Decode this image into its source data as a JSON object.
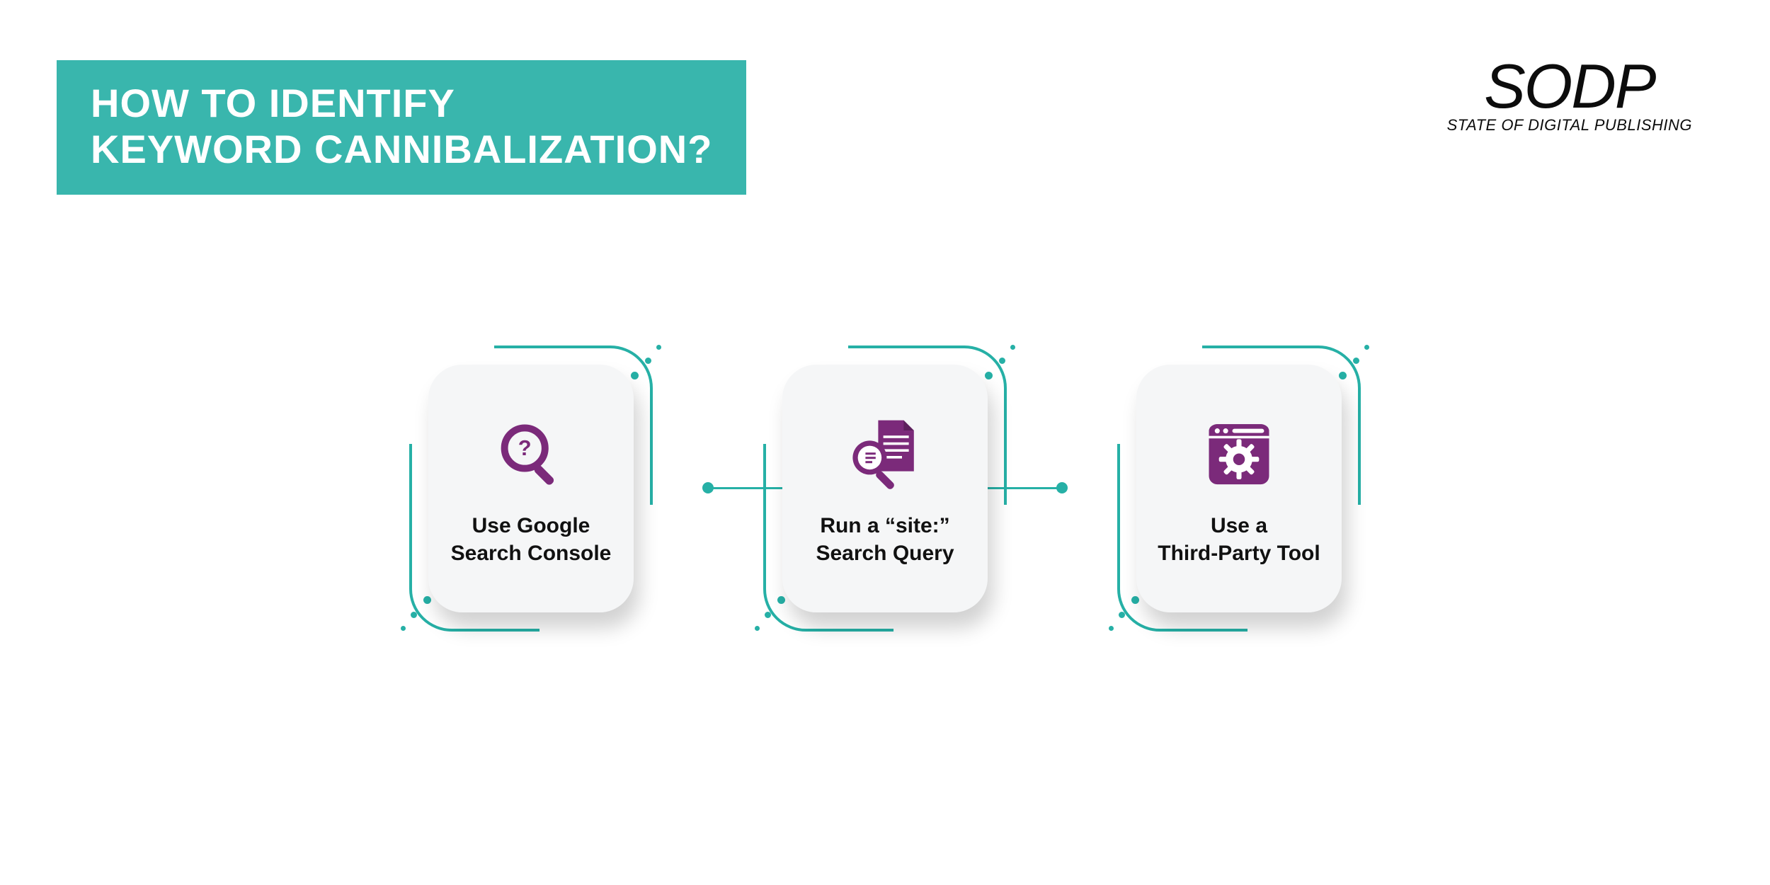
{
  "colors": {
    "teal": "#39b6ad",
    "teal_border": "#26b0a6",
    "purple": "#7b2a7a",
    "text": "#111111",
    "white": "#ffffff",
    "card_bg": "#f5f6f7",
    "page_bg": "#ffffff"
  },
  "title": {
    "line1": "HOW TO IDENTIFY",
    "line2": "KEYWORD CANNIBALIZATION?",
    "fontsize": 56,
    "bg": "#39b6ad",
    "color": "#ffffff"
  },
  "brand": {
    "main": "SODP",
    "sub": "STATE OF DIGITAL PUBLISHING",
    "main_fontsize": 88,
    "sub_fontsize": 22,
    "color": "#0c0c0c"
  },
  "cards": [
    {
      "line1": "Use Google",
      "line2": "Search Console",
      "icon": "magnifier-question"
    },
    {
      "line1": "Run a “site:”",
      "line2": "Search Query",
      "icon": "document-search"
    },
    {
      "line1": "Use a",
      "line2": "Third-Party Tool",
      "icon": "browser-gear"
    }
  ],
  "card_style": {
    "label_fontsize": 30,
    "label_color": "#111111",
    "icon_color": "#7b2a7a",
    "border_color": "#26b0a6",
    "border_width": 4,
    "border_radius": 58,
    "dot_color": "#26b0a6"
  }
}
